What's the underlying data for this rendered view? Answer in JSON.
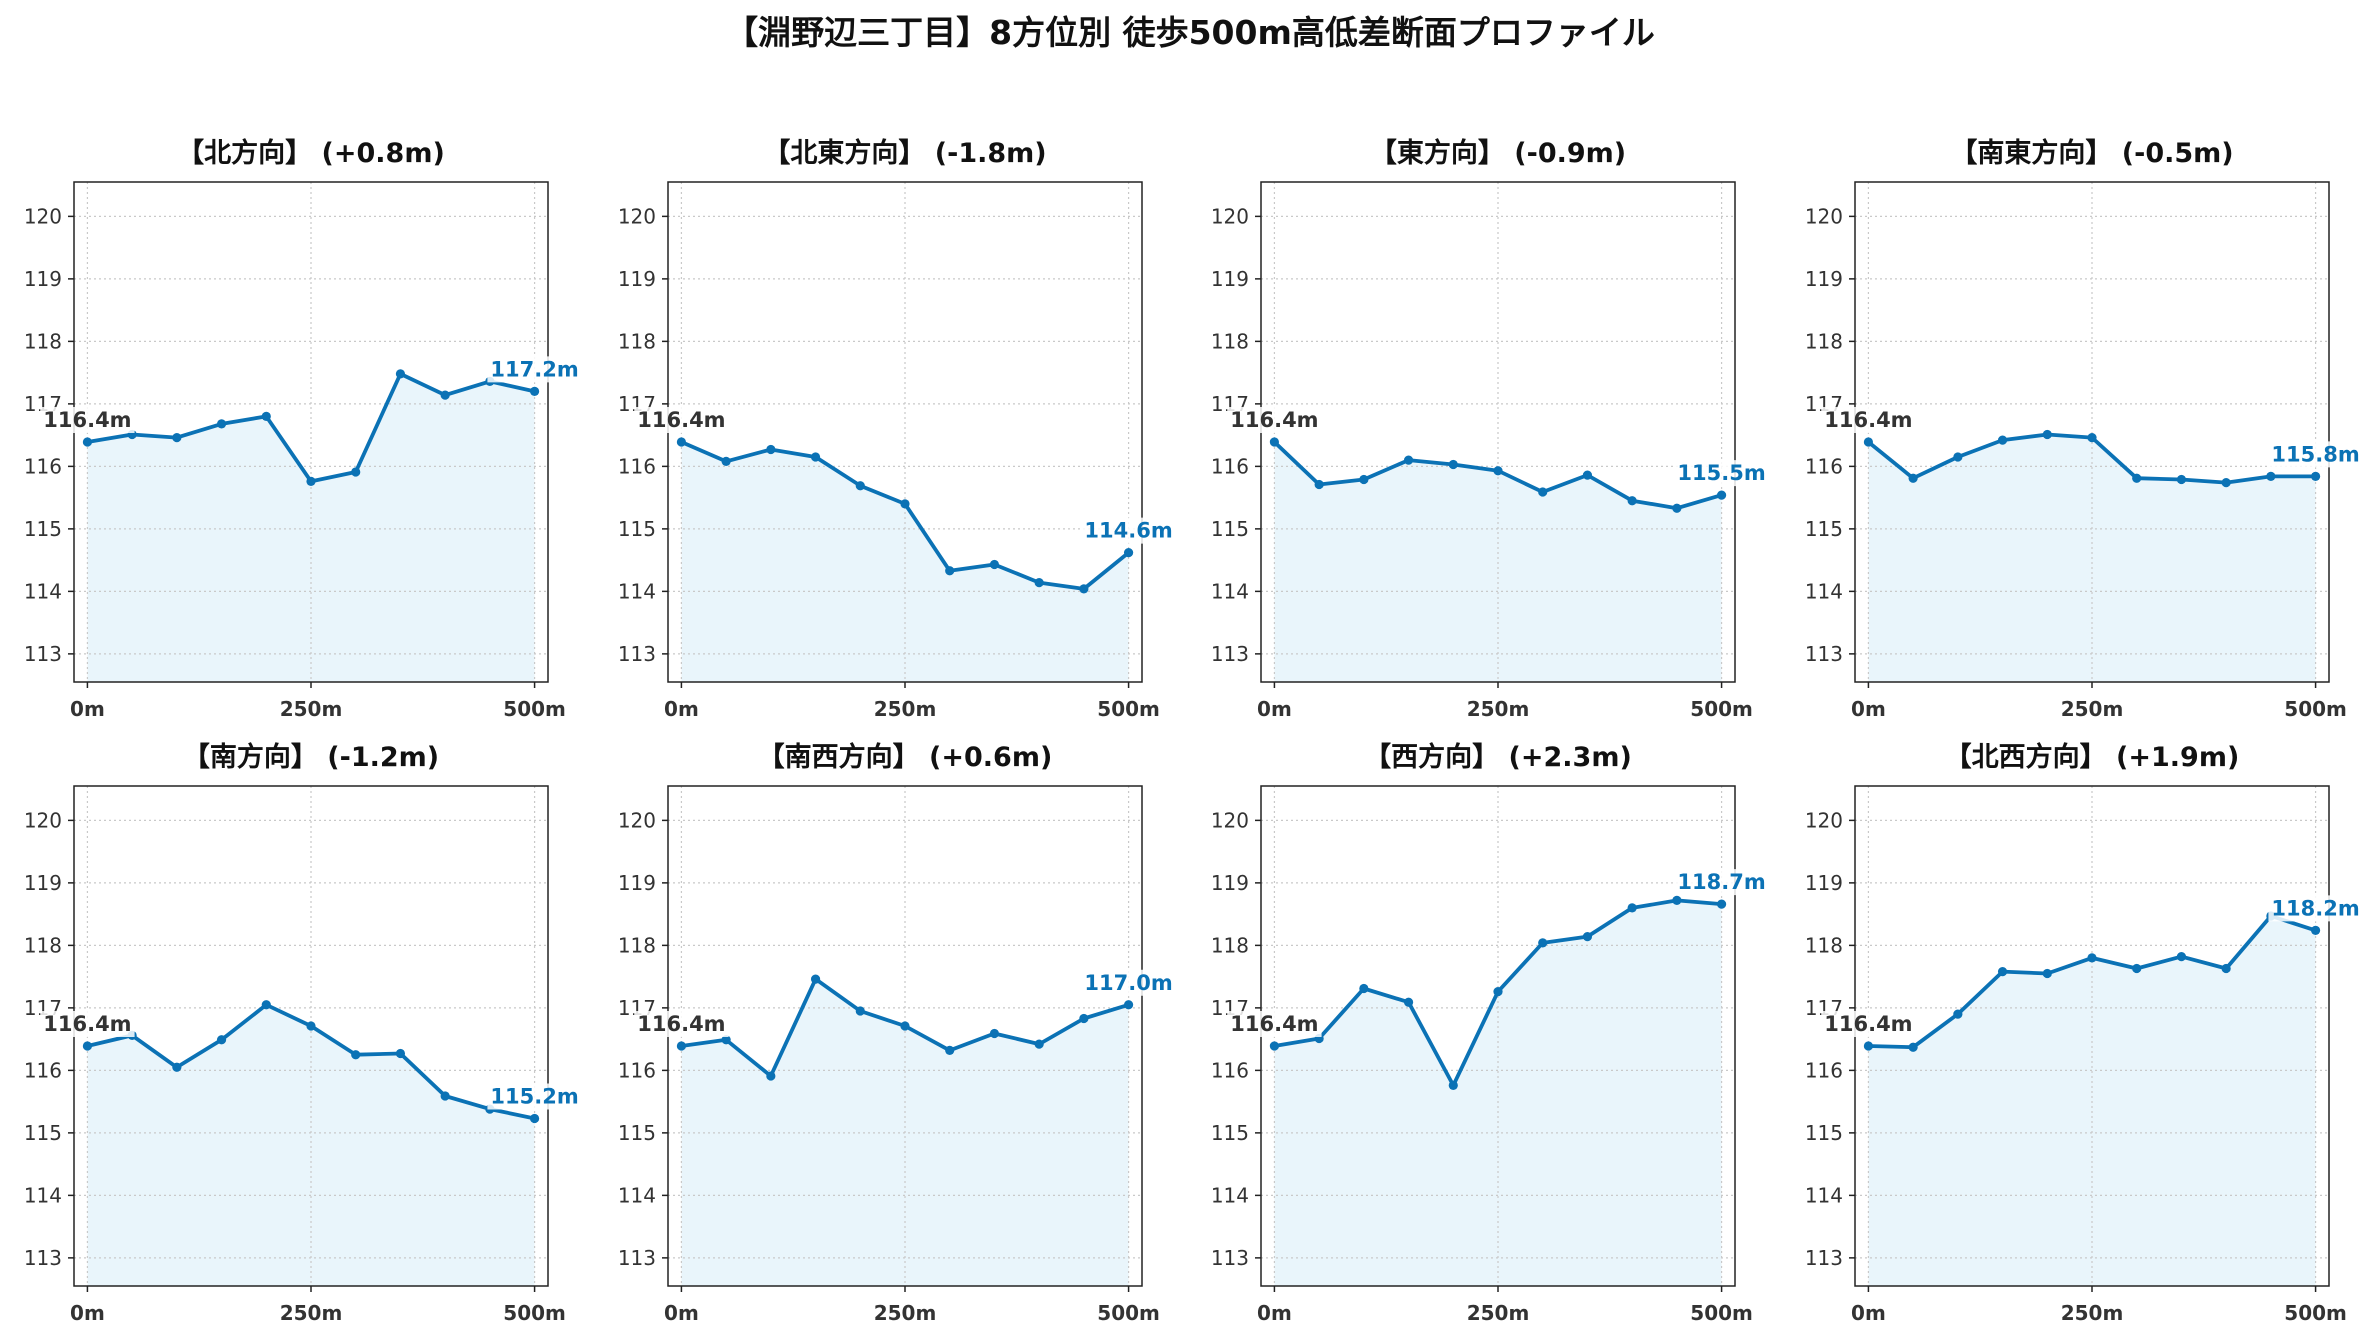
{
  "title": "【淵野辺三丁目】8方位別 徒歩500m高低差断面プロファイル",
  "colors": {
    "line": "#0b72b5",
    "fill": "#e9f5fb",
    "start_label": "#333333",
    "end_label": "#0b72b5",
    "label_box": "#ffffff"
  },
  "chart_data": [
    {
      "type": "line",
      "title": "【北方向】 (+0.8m)",
      "x": [
        0,
        50,
        100,
        150,
        200,
        250,
        300,
        350,
        400,
        450,
        500
      ],
      "values": [
        116.39,
        116.51,
        116.46,
        116.68,
        116.8,
        115.76,
        115.91,
        117.48,
        117.14,
        117.36,
        117.2
      ],
      "start_label": "116.4m",
      "end_label": "117.2m",
      "xlim": [
        -15,
        515
      ],
      "ylim": [
        112.55,
        120.55
      ],
      "grid": true,
      "xticks": [
        0,
        250,
        500
      ],
      "xtick_labels": [
        "0m",
        "250m",
        "500m"
      ],
      "yticks": [
        113,
        114,
        115,
        116,
        117,
        118,
        119,
        120
      ],
      "ytick_labels": [
        "113",
        "114",
        "115",
        "116",
        "117",
        "118",
        "119",
        "120"
      ]
    },
    {
      "type": "line",
      "title": "【北東方向】 (-1.8m)",
      "x": [
        0,
        50,
        100,
        150,
        200,
        250,
        300,
        350,
        400,
        450,
        500
      ],
      "values": [
        116.39,
        116.08,
        116.27,
        116.15,
        115.69,
        115.4,
        114.33,
        114.43,
        114.14,
        114.04,
        114.62
      ],
      "start_label": "116.4m",
      "end_label": "114.6m",
      "xlim": [
        -15,
        515
      ],
      "ylim": [
        112.55,
        120.55
      ],
      "grid": true,
      "xticks": [
        0,
        250,
        500
      ],
      "xtick_labels": [
        "0m",
        "250m",
        "500m"
      ],
      "yticks": [
        113,
        114,
        115,
        116,
        117,
        118,
        119,
        120
      ],
      "ytick_labels": [
        "113",
        "114",
        "115",
        "116",
        "117",
        "118",
        "119",
        "120"
      ]
    },
    {
      "type": "line",
      "title": "【東方向】 (-0.9m)",
      "x": [
        0,
        50,
        100,
        150,
        200,
        250,
        300,
        350,
        400,
        450,
        500
      ],
      "values": [
        116.39,
        115.71,
        115.79,
        116.1,
        116.03,
        115.93,
        115.59,
        115.86,
        115.45,
        115.33,
        115.54
      ],
      "start_label": "116.4m",
      "end_label": "115.5m",
      "xlim": [
        -15,
        515
      ],
      "ylim": [
        112.55,
        120.55
      ],
      "grid": true,
      "xticks": [
        0,
        250,
        500
      ],
      "xtick_labels": [
        "0m",
        "250m",
        "500m"
      ],
      "yticks": [
        113,
        114,
        115,
        116,
        117,
        118,
        119,
        120
      ],
      "ytick_labels": [
        "113",
        "114",
        "115",
        "116",
        "117",
        "118",
        "119",
        "120"
      ]
    },
    {
      "type": "line",
      "title": "【南東方向】 (-0.5m)",
      "x": [
        0,
        50,
        100,
        150,
        200,
        250,
        300,
        350,
        400,
        450,
        500
      ],
      "values": [
        116.39,
        115.81,
        116.15,
        116.42,
        116.51,
        116.46,
        115.81,
        115.79,
        115.74,
        115.84,
        115.84
      ],
      "start_label": "116.4m",
      "end_label": "115.8m",
      "xlim": [
        -15,
        515
      ],
      "ylim": [
        112.55,
        120.55
      ],
      "grid": true,
      "xticks": [
        0,
        250,
        500
      ],
      "xtick_labels": [
        "0m",
        "250m",
        "500m"
      ],
      "yticks": [
        113,
        114,
        115,
        116,
        117,
        118,
        119,
        120
      ],
      "ytick_labels": [
        "113",
        "114",
        "115",
        "116",
        "117",
        "118",
        "119",
        "120"
      ]
    },
    {
      "type": "line",
      "title": "【南方向】 (-1.2m)",
      "x": [
        0,
        50,
        100,
        150,
        200,
        250,
        300,
        350,
        400,
        450,
        500
      ],
      "values": [
        116.39,
        116.56,
        116.05,
        116.49,
        117.05,
        116.71,
        116.25,
        116.27,
        115.59,
        115.38,
        115.23
      ],
      "start_label": "116.4m",
      "end_label": "115.2m",
      "xlim": [
        -15,
        515
      ],
      "ylim": [
        112.55,
        120.55
      ],
      "grid": true,
      "xticks": [
        0,
        250,
        500
      ],
      "xtick_labels": [
        "0m",
        "250m",
        "500m"
      ],
      "yticks": [
        113,
        114,
        115,
        116,
        117,
        118,
        119,
        120
      ],
      "ytick_labels": [
        "113",
        "114",
        "115",
        "116",
        "117",
        "118",
        "119",
        "120"
      ]
    },
    {
      "type": "line",
      "title": "【南西方向】 (+0.6m)",
      "x": [
        0,
        50,
        100,
        150,
        200,
        250,
        300,
        350,
        400,
        450,
        500
      ],
      "values": [
        116.39,
        116.49,
        115.91,
        117.46,
        116.95,
        116.71,
        116.32,
        116.59,
        116.42,
        116.83,
        117.05
      ],
      "start_label": "116.4m",
      "end_label": "117.0m",
      "xlim": [
        -15,
        515
      ],
      "ylim": [
        112.55,
        120.55
      ],
      "grid": true,
      "xticks": [
        0,
        250,
        500
      ],
      "xtick_labels": [
        "0m",
        "250m",
        "500m"
      ],
      "yticks": [
        113,
        114,
        115,
        116,
        117,
        118,
        119,
        120
      ],
      "ytick_labels": [
        "113",
        "114",
        "115",
        "116",
        "117",
        "118",
        "119",
        "120"
      ]
    },
    {
      "type": "line",
      "title": "【西方向】 (+2.3m)",
      "x": [
        0,
        50,
        100,
        150,
        200,
        250,
        300,
        350,
        400,
        450,
        500
      ],
      "values": [
        116.39,
        116.51,
        117.31,
        117.09,
        115.76,
        117.26,
        118.04,
        118.14,
        118.6,
        118.72,
        118.66
      ],
      "start_label": "116.4m",
      "end_label": "118.7m",
      "xlim": [
        -15,
        515
      ],
      "ylim": [
        112.55,
        120.55
      ],
      "grid": true,
      "xticks": [
        0,
        250,
        500
      ],
      "xtick_labels": [
        "0m",
        "250m",
        "500m"
      ],
      "yticks": [
        113,
        114,
        115,
        116,
        117,
        118,
        119,
        120
      ],
      "ytick_labels": [
        "113",
        "114",
        "115",
        "116",
        "117",
        "118",
        "119",
        "120"
      ]
    },
    {
      "type": "line",
      "title": "【北西方向】 (+1.9m)",
      "x": [
        0,
        50,
        100,
        150,
        200,
        250,
        300,
        350,
        400,
        450,
        500
      ],
      "values": [
        116.39,
        116.37,
        116.9,
        117.58,
        117.55,
        117.8,
        117.63,
        117.82,
        117.63,
        118.47,
        118.24
      ],
      "start_label": "116.4m",
      "end_label": "118.2m",
      "xlim": [
        -15,
        515
      ],
      "ylim": [
        112.55,
        120.55
      ],
      "grid": true,
      "xticks": [
        0,
        250,
        500
      ],
      "xtick_labels": [
        "0m",
        "250m",
        "500m"
      ],
      "yticks": [
        113,
        114,
        115,
        116,
        117,
        118,
        119,
        120
      ],
      "ytick_labels": [
        "113",
        "114",
        "115",
        "116",
        "117",
        "118",
        "119",
        "120"
      ]
    }
  ]
}
